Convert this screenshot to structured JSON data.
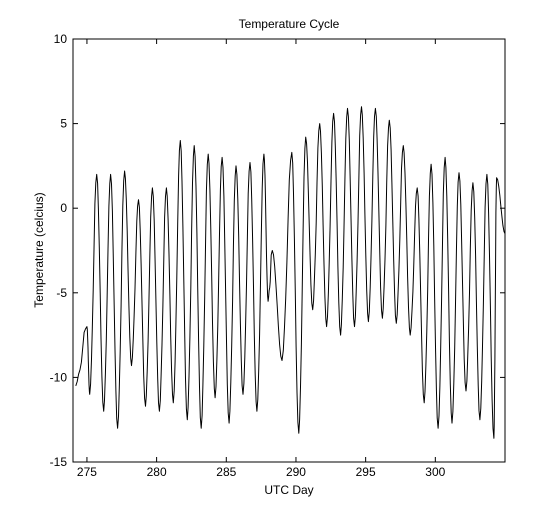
{
  "chart_data": {
    "type": "line",
    "title": "Temperature Cycle",
    "xlabel": "UTC Day",
    "ylabel": "Temperature (celcius)",
    "xlim": [
      274,
      305
    ],
    "ylim": [
      -15,
      10
    ],
    "xticks": [
      275,
      280,
      285,
      290,
      295,
      300
    ],
    "yticks": [
      10,
      5,
      0,
      -5,
      -10,
      -15
    ],
    "grid": false,
    "line_color": "#000000",
    "series": [
      {
        "peaks": [
          [
            275.0,
            -7.0
          ],
          [
            275.7,
            2.0
          ],
          [
            276.7,
            2.0
          ],
          [
            277.7,
            2.2
          ],
          [
            278.7,
            0.5
          ],
          [
            279.7,
            1.2
          ],
          [
            280.7,
            1.2
          ],
          [
            281.7,
            4.0
          ],
          [
            282.7,
            3.7
          ],
          [
            283.7,
            3.2
          ],
          [
            284.7,
            3.0
          ],
          [
            285.7,
            2.5
          ],
          [
            286.7,
            2.7
          ],
          [
            287.7,
            3.2
          ],
          [
            288.3,
            -2.5
          ],
          [
            289.7,
            3.3
          ],
          [
            290.7,
            4.2
          ],
          [
            291.7,
            5.0
          ],
          [
            292.7,
            5.6
          ],
          [
            293.7,
            5.9
          ],
          [
            294.7,
            6.0
          ],
          [
            295.7,
            5.9
          ],
          [
            296.7,
            5.2
          ],
          [
            297.7,
            3.7
          ],
          [
            298.7,
            1.2
          ],
          [
            299.7,
            2.6
          ],
          [
            300.7,
            3.0
          ],
          [
            301.7,
            2.1
          ],
          [
            302.7,
            1.5
          ],
          [
            303.7,
            2.0
          ],
          [
            304.4,
            1.8
          ]
        ],
        "troughs": [
          [
            274.2,
            -10.5
          ],
          [
            275.2,
            -11.0
          ],
          [
            276.2,
            -12.0
          ],
          [
            277.2,
            -13.0
          ],
          [
            278.2,
            -9.3
          ],
          [
            279.2,
            -11.7
          ],
          [
            280.2,
            -12.0
          ],
          [
            281.2,
            -11.5
          ],
          [
            282.2,
            -12.5
          ],
          [
            283.2,
            -13.0
          ],
          [
            284.2,
            -11.2
          ],
          [
            285.2,
            -12.7
          ],
          [
            286.2,
            -11.0
          ],
          [
            287.2,
            -12.0
          ],
          [
            288.0,
            -5.5
          ],
          [
            289.0,
            -9.0
          ],
          [
            290.2,
            -13.3
          ],
          [
            291.2,
            -6.0
          ],
          [
            292.2,
            -7.0
          ],
          [
            293.2,
            -7.5
          ],
          [
            294.2,
            -7.0
          ],
          [
            295.2,
            -6.7
          ],
          [
            296.2,
            -6.5
          ],
          [
            297.2,
            -6.8
          ],
          [
            298.2,
            -7.5
          ],
          [
            299.2,
            -11.5
          ],
          [
            300.2,
            -13.0
          ],
          [
            301.2,
            -12.7
          ],
          [
            302.2,
            -10.8
          ],
          [
            303.2,
            -12.5
          ],
          [
            304.2,
            -13.6
          ],
          [
            305.0,
            -1.5
          ]
        ]
      }
    ]
  }
}
